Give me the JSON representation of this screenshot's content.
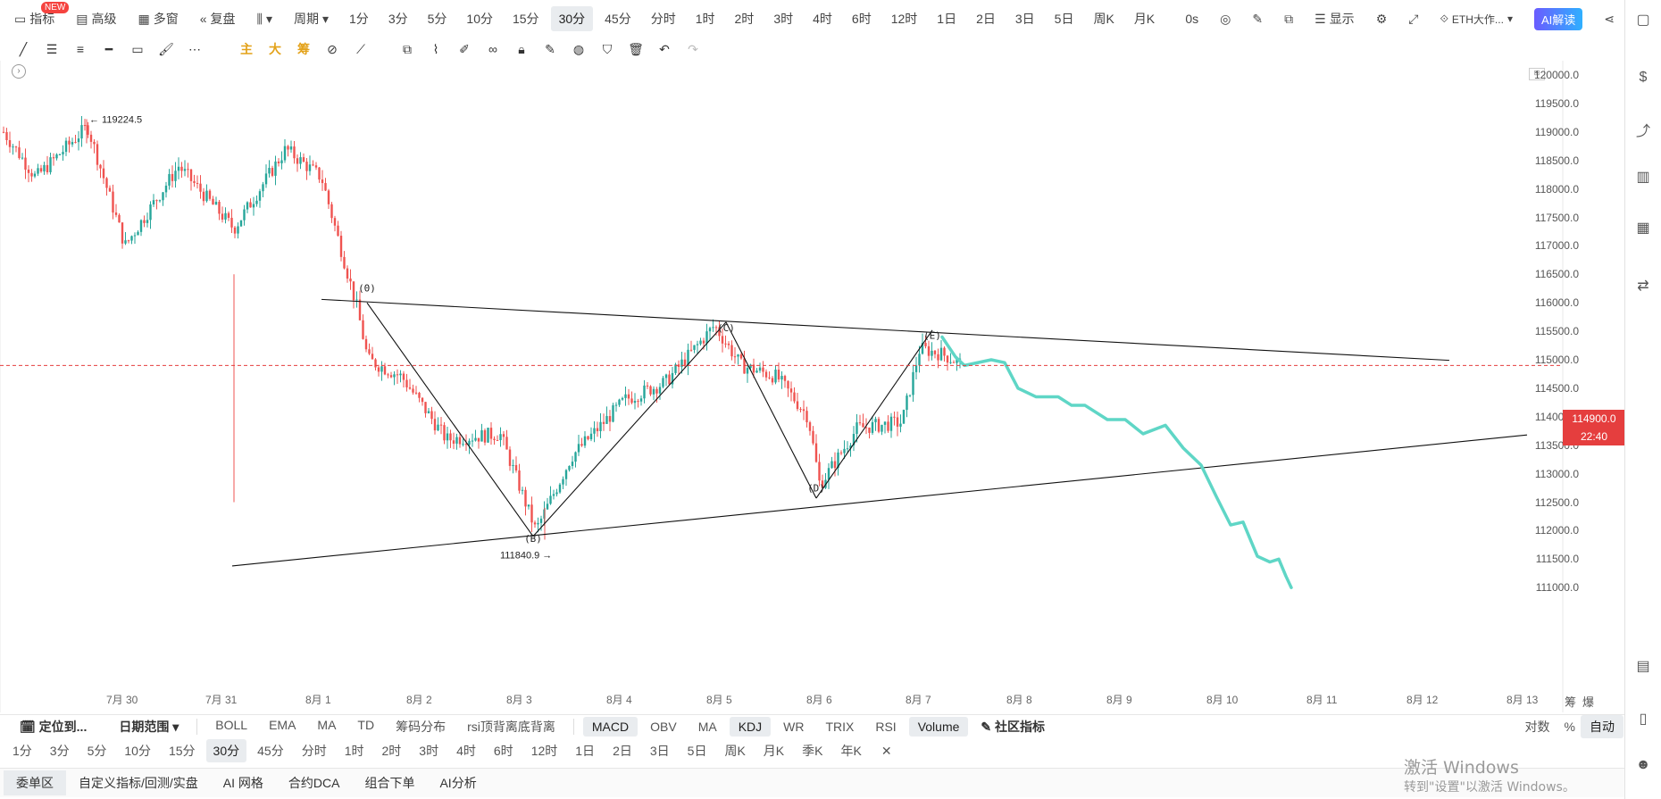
{
  "topbar": {
    "items": [
      {
        "label": "指标",
        "icon": "indicator-icon"
      },
      {
        "label": "高级",
        "icon": "layout-icon"
      },
      {
        "label": "多窗",
        "icon": "multi-window-icon"
      },
      {
        "label": "复盘",
        "icon": "replay-icon"
      },
      {
        "label": "",
        "icon": "chart-type-icon"
      },
      {
        "label": "周期",
        "icon": "chevron-down-icon"
      }
    ],
    "new_badge": "NEW",
    "timeframes": [
      "1分",
      "3分",
      "5分",
      "10分",
      "15分",
      "30分",
      "45分",
      "分时",
      "1时",
      "2时",
      "3时",
      "4时",
      "6时",
      "12时",
      "1日",
      "2日",
      "3日",
      "5日",
      "周K",
      "月K"
    ],
    "active_timeframe": "30分",
    "countdown": "0s",
    "display_label": "显示",
    "symbol_label": "ETH大作...",
    "ai_label": "AI解读"
  },
  "drawbar": {
    "cn_tools": [
      "主",
      "大",
      "筹"
    ]
  },
  "chart": {
    "high_label": "119224.5",
    "low_label": "111840.9",
    "wave_labels": [
      "(0)",
      "(B)",
      "(C)",
      "(D)",
      "(E)"
    ],
    "y_ticks": [
      "120000.0",
      "119500.0",
      "119000.0",
      "118500.0",
      "118000.0",
      "117500.0",
      "117000.0",
      "116500.0",
      "116000.0",
      "115500.0",
      "115000.0",
      "114500.0",
      "114000.0",
      "113500.0",
      "113000.0",
      "112500.0",
      "112000.0",
      "111500.0",
      "111000.0"
    ],
    "x_ticks": [
      "7月 30",
      "7月 31",
      "8月 1",
      "8月 2",
      "8月 3",
      "8月 4",
      "8月 5",
      "8月 6",
      "8月 7",
      "8月 8",
      "8月 9",
      "8月 10",
      "8月 11",
      "8月 12",
      "8月 13"
    ],
    "current_price": "114900.0",
    "countdown_tag": "22:40",
    "axis_corner": [
      "筹",
      "爆"
    ],
    "colors": {
      "up": "#26a69a",
      "down": "#ef5350",
      "forecast": "#5fd6c6",
      "price_line": "#e53e3e"
    }
  },
  "indicators": {
    "left": [
      {
        "label": "定位到..."
      },
      {
        "label": "日期范围"
      }
    ],
    "main": [
      "BOLL",
      "EMA",
      "MA",
      "TD",
      "筹码分布",
      "rsi顶背离底背离"
    ],
    "sub": [
      "MACD",
      "OBV",
      "MA",
      "KDJ",
      "WR",
      "TRIX",
      "RSI",
      "Volume"
    ],
    "active_sub": [
      "MACD",
      "KDJ",
      "Volume"
    ],
    "community": "社区指标",
    "right": [
      "对数",
      "%",
      "自动"
    ]
  },
  "tf_bar": {
    "items": [
      "1分",
      "3分",
      "5分",
      "10分",
      "15分",
      "30分",
      "45分",
      "分时",
      "1时",
      "2时",
      "3时",
      "4时",
      "6时",
      "12时",
      "1日",
      "2日",
      "3日",
      "5日",
      "周K",
      "月K",
      "季K",
      "年K"
    ],
    "active": "30分"
  },
  "bottom": {
    "tabs": [
      "委单区",
      "自定义指标/回测/实盘",
      "AI 网格",
      "合约DCA",
      "组合下单",
      "AI分析"
    ],
    "active": "委单区"
  },
  "watermark": {
    "line1": "激活 Windows",
    "line2": "转到\"设置\"以激活 Windows。"
  }
}
